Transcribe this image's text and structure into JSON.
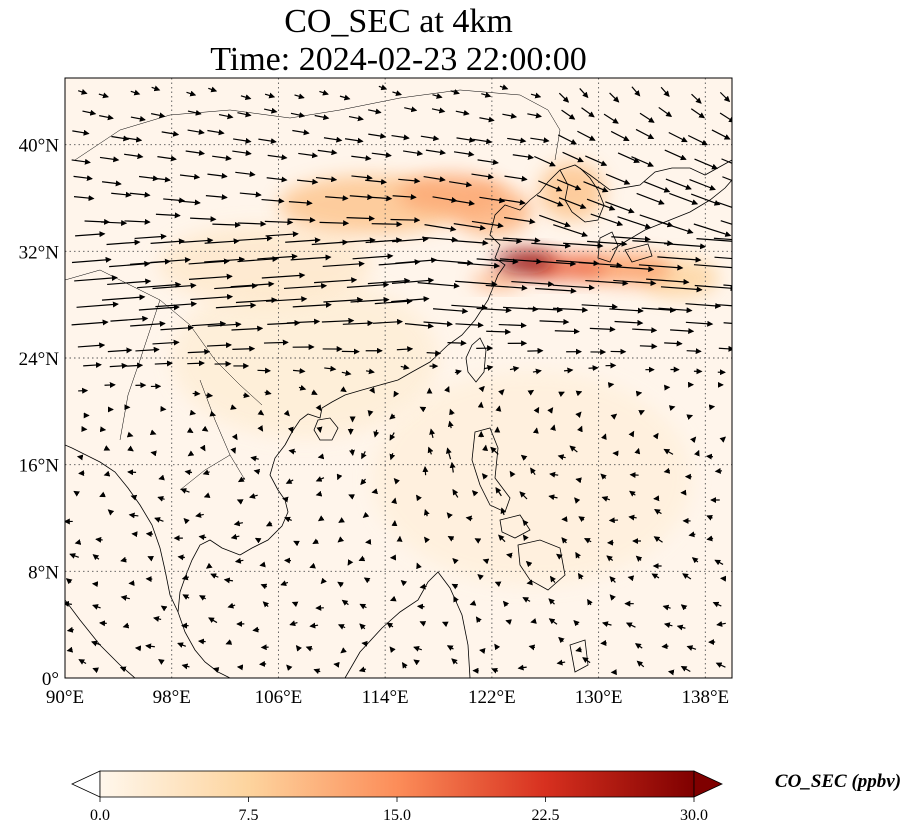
{
  "figure": {
    "title_line1": "CO_SEC at 4km",
    "title_line2": "Time: 2024-02-23 22:00:00"
  },
  "map": {
    "lon_range": [
      90,
      140
    ],
    "lat_range": [
      0,
      45
    ],
    "lon_ticks": [
      90,
      98,
      106,
      114,
      122,
      130,
      138
    ],
    "lat_ticks": [
      0,
      8,
      16,
      24,
      32,
      40
    ],
    "lon_tick_labels": [
      "90°E",
      "98°E",
      "106°E",
      "114°E",
      "122°E",
      "130°E",
      "138°E"
    ],
    "lat_tick_labels": [
      "0°",
      "8°N",
      "16°N",
      "24°N",
      "32°N",
      "40°N"
    ],
    "gridlines": "dotted",
    "background_color": "#fff5eb",
    "coastline_color": "#000000"
  },
  "chart_data": {
    "type": "heatmap",
    "variable": "CO_SEC",
    "level": "4km",
    "time": "2024-02-23 22:00:00",
    "colormap": "OrRd",
    "vmin": 0.0,
    "vmax": 30.0,
    "plumes": [
      {
        "lon": 113,
        "lat": 35.5,
        "value": 9,
        "spread_lon": 7,
        "spread_lat": 2.2
      },
      {
        "lon": 119,
        "lat": 36.3,
        "value": 12,
        "spread_lon": 4,
        "spread_lat": 1.5
      },
      {
        "lon": 122,
        "lat": 35,
        "value": 11,
        "spread_lon": 3,
        "spread_lat": 1.8
      },
      {
        "lon": 128,
        "lat": 36.5,
        "value": 9,
        "spread_lon": 2.5,
        "spread_lat": 2.2
      },
      {
        "lon": 124.5,
        "lat": 31.2,
        "value": 28,
        "spread_lon": 2.2,
        "spread_lat": 0.9
      },
      {
        "lon": 127.5,
        "lat": 30.8,
        "value": 18,
        "spread_lon": 3,
        "spread_lat": 1
      },
      {
        "lon": 132,
        "lat": 30.7,
        "value": 13,
        "spread_lon": 3.5,
        "spread_lat": 1.2
      },
      {
        "lon": 136,
        "lat": 30,
        "value": 7,
        "spread_lon": 3,
        "spread_lat": 1.5
      },
      {
        "lon": 122.5,
        "lat": 29.8,
        "value": 12,
        "spread_lon": 2,
        "spread_lat": 0.6
      },
      {
        "lon": 105,
        "lat": 31,
        "value": 3,
        "spread_lon": 8,
        "spread_lat": 3
      },
      {
        "lon": 108,
        "lat": 24,
        "value": 2,
        "spread_lon": 10,
        "spread_lat": 6
      },
      {
        "lon": 125,
        "lat": 15,
        "value": 1.5,
        "spread_lon": 12,
        "spread_lat": 8
      }
    ],
    "wind_vectors": "quiver"
  },
  "colorbar": {
    "ticks": [
      0,
      7.5,
      15,
      22.5,
      30
    ],
    "tick_labels": [
      "0.0",
      "7.5",
      "15.0",
      "22.5",
      "30.0"
    ],
    "label": "CO_SEC (ppbv)",
    "extend": "both"
  }
}
